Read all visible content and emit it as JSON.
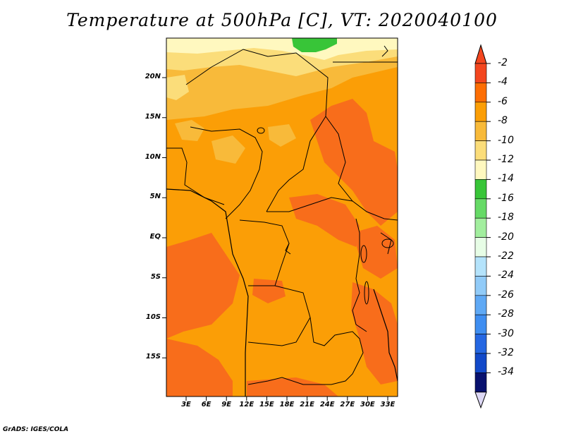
{
  "title": "Temperature at 500hPa [C], VT: 2020040100",
  "footer": "GrADS: IGES/COLA",
  "y_ticks": [
    "20N",
    "15N",
    "10N",
    "5N",
    "EQ",
    "5S",
    "10S",
    "15S"
  ],
  "x_ticks": [
    "3E",
    "6E",
    "9E",
    "12E",
    "15E",
    "18E",
    "21E",
    "24E",
    "27E",
    "30E",
    "33E"
  ],
  "colorbar": {
    "labels": [
      "-2",
      "-4",
      "-6",
      "-8",
      "-10",
      "-12",
      "-14",
      "-16",
      "-18",
      "-20",
      "-22",
      "-24",
      "-26",
      "-28",
      "-30",
      "-32",
      "-34"
    ],
    "colors": [
      "#f3461f",
      "#fd6e04",
      "#fb9e06",
      "#f8ba3a",
      "#fbdd7a",
      "#fff8bf",
      "#38c538",
      "#66da66",
      "#a2ee9e",
      "#e7fde6",
      "#b4e3fb",
      "#91cbf8",
      "#5fa9f5",
      "#3f8ef1",
      "#2567e2",
      "#1249c9",
      "#08116e"
    ],
    "top_triangle_color": "#f3461f",
    "bottom_triangle_color": "#ddd8f5"
  },
  "map_colors": {
    "dark_orange": "#f86d1b",
    "orange": "#fb9e06",
    "light_orange": "#f8ba3a",
    "pale": "#fbdd7a",
    "cream": "#fff8bf",
    "green": "#38c538",
    "border": "#000000"
  }
}
